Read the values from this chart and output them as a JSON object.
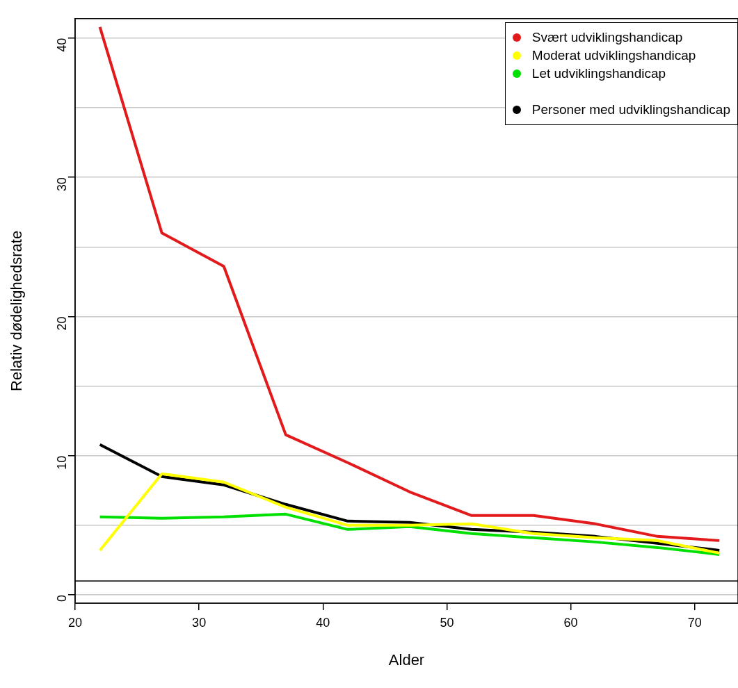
{
  "chart_data": {
    "type": "line",
    "xlabel": "Alder",
    "ylabel": "Relativ dødelighedsrate",
    "x": [
      22,
      27,
      32,
      37,
      42,
      47,
      52,
      57,
      62,
      67,
      72
    ],
    "series": [
      {
        "name": "Svært udviklingshandicap",
        "color": "#e31a1c",
        "values": [
          40.8,
          26.0,
          23.6,
          11.5,
          9.5,
          7.4,
          5.7,
          5.7,
          5.1,
          4.2,
          3.9
        ]
      },
      {
        "name": "Moderat udviklingshandicap",
        "color": "#ffff00",
        "values": [
          3.2,
          8.7,
          8.1,
          6.3,
          5.0,
          5.0,
          5.1,
          4.4,
          4.1,
          3.9,
          3.0
        ]
      },
      {
        "name": "Let udviklingshandicap",
        "color": "#00e000",
        "values": [
          5.6,
          5.5,
          5.6,
          5.8,
          4.7,
          4.9,
          4.4,
          4.1,
          3.8,
          3.4,
          2.9
        ]
      },
      {
        "name": "Personer med udviklingshandicap",
        "color": "#000000",
        "values": [
          10.8,
          8.5,
          7.9,
          6.5,
          5.3,
          5.2,
          4.7,
          4.5,
          4.2,
          3.7,
          3.2
        ]
      }
    ],
    "xlim": [
      20,
      73.5
    ],
    "xticks": [
      20,
      30,
      40,
      50,
      60,
      70
    ],
    "ylim": [
      -0.6,
      41.4
    ],
    "yticks": [
      0,
      {
        "value": 5,
        "label": null
      },
      10,
      {
        "value": 15,
        "label": null
      },
      20,
      {
        "value": 25,
        "label": null
      },
      30,
      {
        "value": 35,
        "label": null
      },
      40
    ],
    "ref_lines": [
      {
        "axis": "y",
        "value": 1,
        "color": "#000000"
      }
    ],
    "grid": "y",
    "legend": "top right",
    "marker": "none",
    "line_style": "solid"
  }
}
